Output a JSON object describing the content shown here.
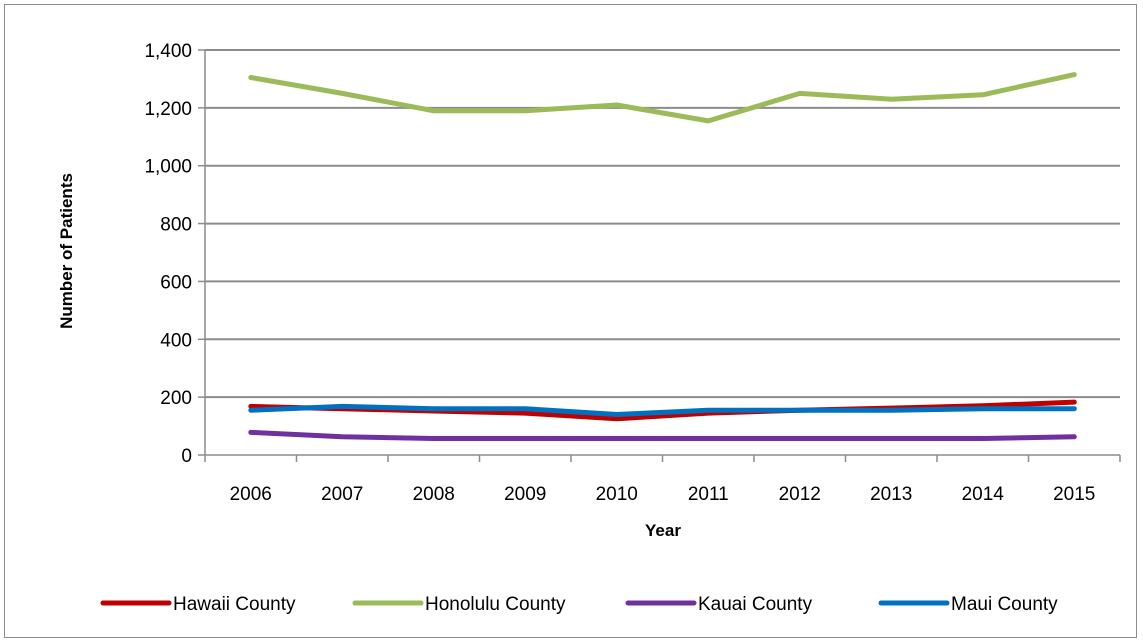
{
  "chart_data": {
    "type": "line",
    "title": "",
    "xlabel": "Year",
    "ylabel": "Number of Patients",
    "categories": [
      "2006",
      "2007",
      "2008",
      "2009",
      "2010",
      "2011",
      "2012",
      "2013",
      "2014",
      "2015"
    ],
    "ylim": [
      0,
      1400
    ],
    "yticks": [
      0,
      200,
      400,
      600,
      800,
      1000,
      1200,
      1400
    ],
    "ytick_labels": [
      "0",
      "200",
      "400",
      "600",
      "800",
      "1,000",
      "1,200",
      "1,400"
    ],
    "grid": "horizontal",
    "legend_position": "bottom",
    "series": [
      {
        "name": "Hawaii County",
        "color": "#c00000",
        "values": [
          168,
          160,
          152,
          145,
          125,
          145,
          155,
          162,
          170,
          183
        ]
      },
      {
        "name": "Honolulu County",
        "color": "#9bbb59",
        "values": [
          1305,
          1250,
          1190,
          1190,
          1210,
          1155,
          1250,
          1230,
          1245,
          1315
        ]
      },
      {
        "name": "Kauai County",
        "color": "#7030a0",
        "values": [
          78,
          63,
          57,
          57,
          57,
          57,
          57,
          57,
          57,
          63
        ]
      },
      {
        "name": "Maui County",
        "color": "#0070c0",
        "values": [
          155,
          168,
          160,
          160,
          140,
          155,
          155,
          155,
          160,
          160
        ]
      }
    ]
  }
}
